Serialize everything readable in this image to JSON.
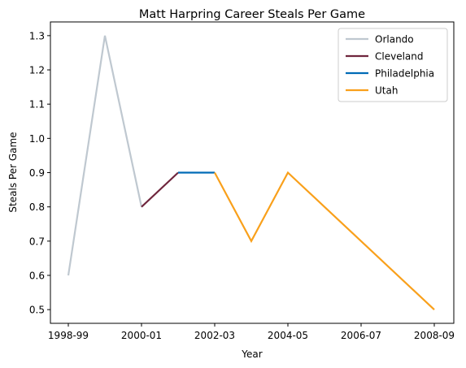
{
  "chart_data": {
    "type": "line",
    "title": "Matt Harpring Career Steals Per Game",
    "xlabel": "Year",
    "ylabel": "Steals Per Game",
    "x_ticks": [
      "1998-99",
      "2000-01",
      "2002-03",
      "2004-05",
      "2006-07",
      "2008-09"
    ],
    "y_ticks": [
      "0.5",
      "0.6",
      "0.7",
      "0.8",
      "0.9",
      "1.0",
      "1.1",
      "1.2",
      "1.3"
    ],
    "ylim": [
      0.46,
      1.34
    ],
    "grid": false,
    "legend_position": "top-right",
    "series": [
      {
        "name": "Orlando",
        "color": "#bfc8d0",
        "points": [
          [
            "1998-99",
            0.6
          ],
          [
            "1999-00",
            1.3
          ],
          [
            "2000-01",
            0.8
          ]
        ]
      },
      {
        "name": "Cleveland",
        "color": "#6f263d",
        "points": [
          [
            "2000-01",
            0.8
          ],
          [
            "2001-02",
            0.9
          ]
        ]
      },
      {
        "name": "Philadelphia",
        "color": "#006bb6",
        "points": [
          [
            "2001-02",
            0.9
          ],
          [
            "2002-03",
            0.9
          ]
        ]
      },
      {
        "name": "Utah",
        "color": "#f9a01b",
        "points": [
          [
            "2002-03",
            0.9
          ],
          [
            "2003-04",
            0.7
          ],
          [
            "2004-05",
            0.9
          ],
          [
            "2008-09",
            0.5
          ]
        ]
      }
    ]
  }
}
